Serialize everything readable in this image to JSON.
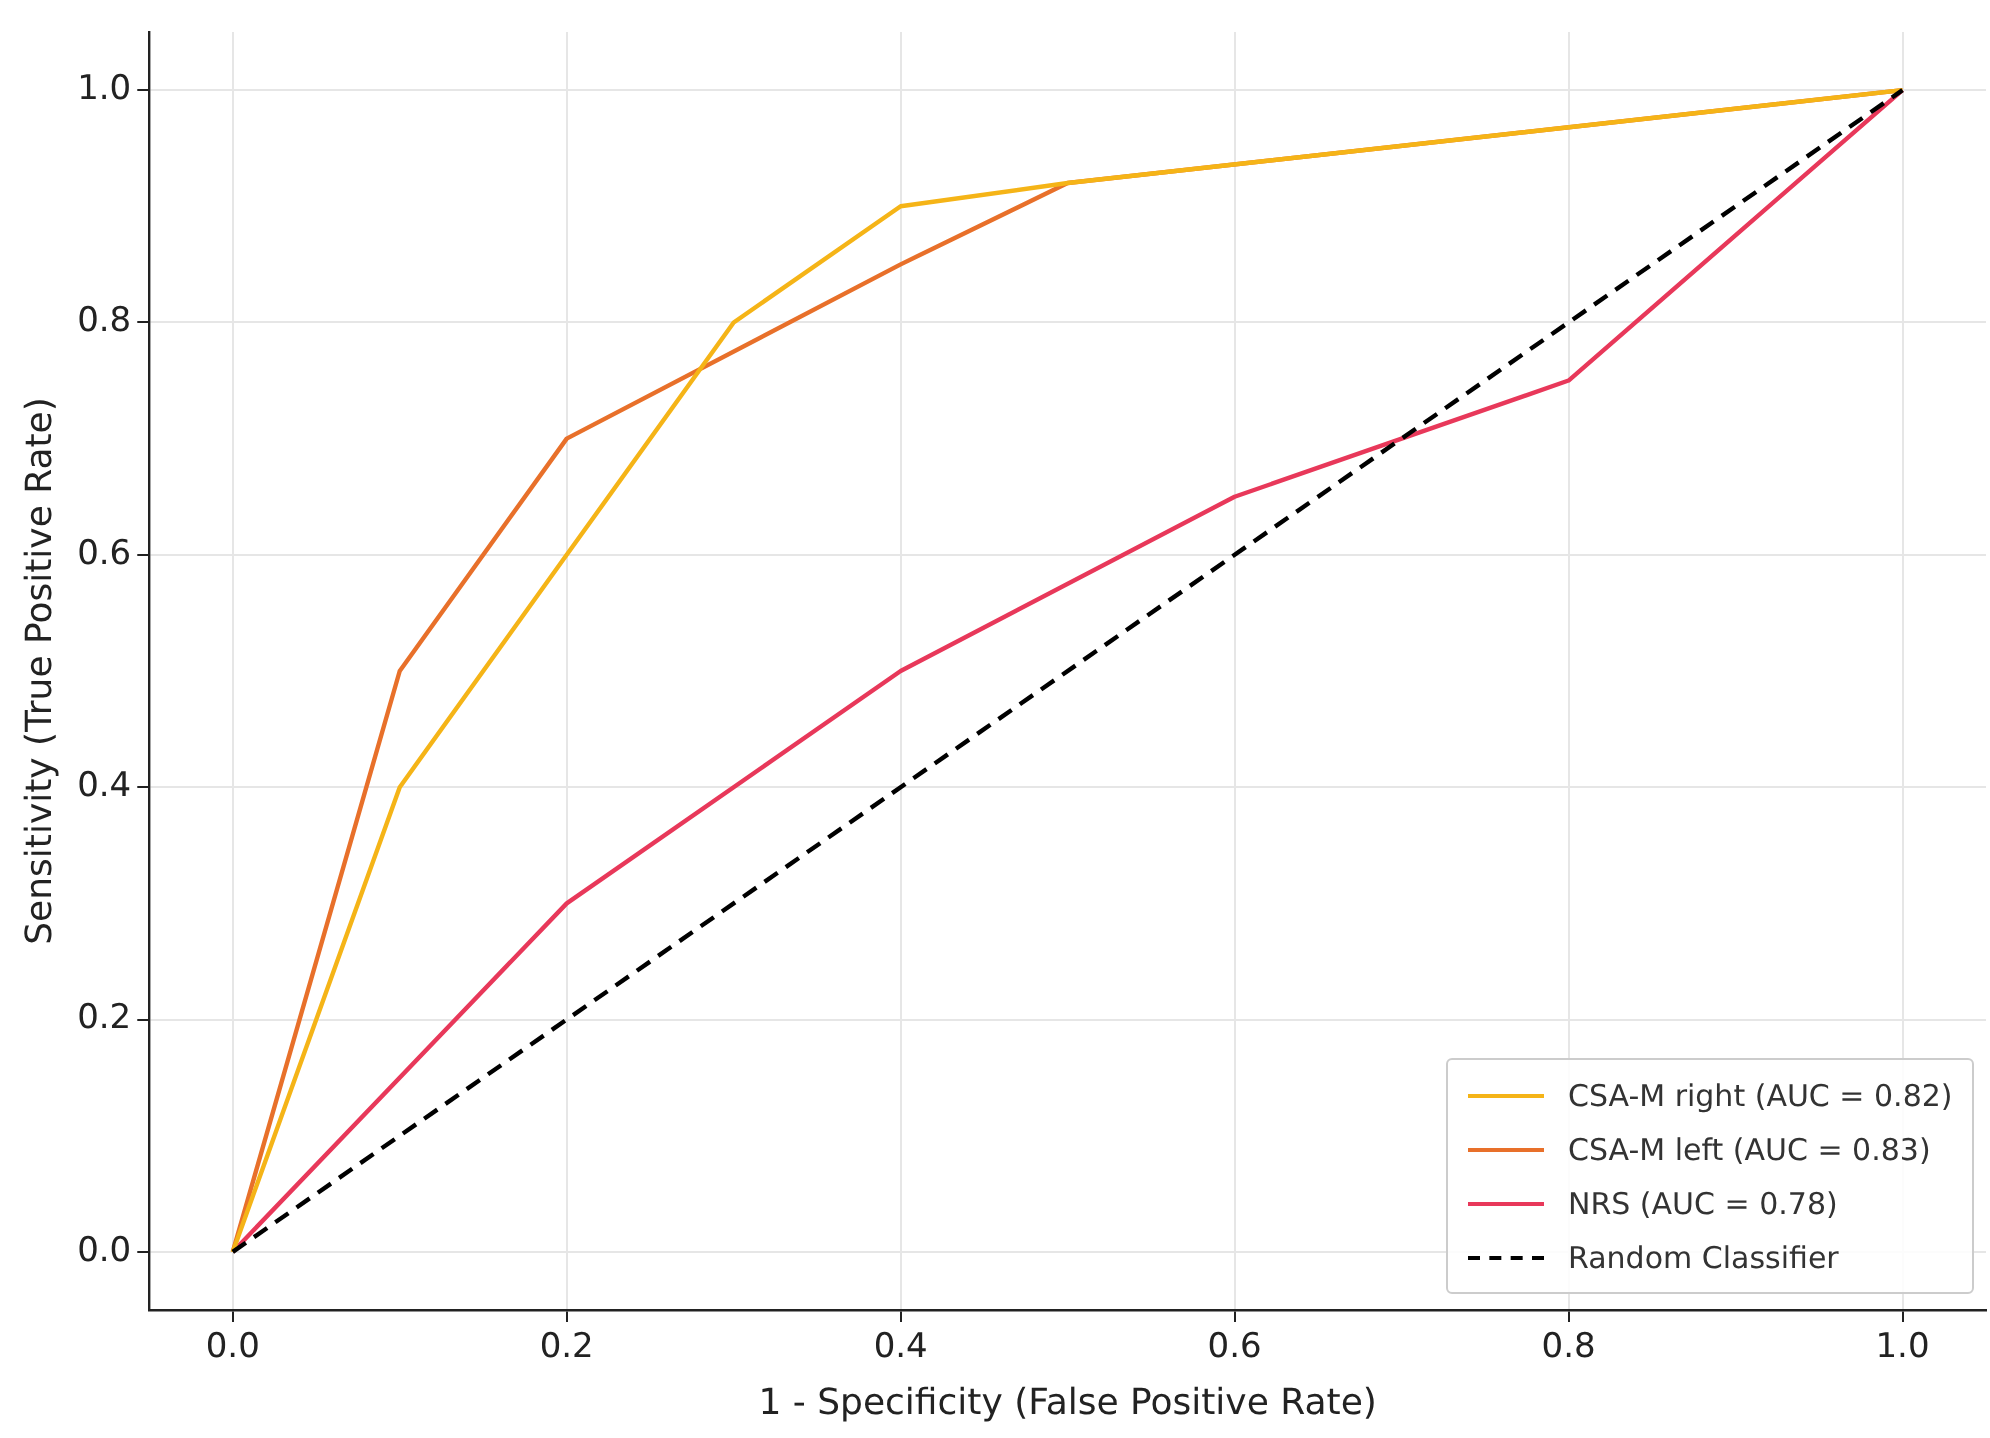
{
  "chart_data": {
    "type": "line",
    "xlabel": "1 - Specificity (False Positive Rate)",
    "ylabel": "Sensitivity (True Positive Rate)",
    "series": [
      {
        "name": "CSA-M right (AUC = 0.82)",
        "color": "#f5b417",
        "x": [
          0,
          0.1,
          0.2,
          0.3,
          0.4,
          0.5,
          1
        ],
        "values": [
          0,
          0.4,
          0.6,
          0.8,
          0.9,
          0.92,
          1
        ]
      },
      {
        "name": "CSA-M left (AUC = 0.83)",
        "color": "#e8702a",
        "x": [
          0,
          0.1,
          0.2,
          0.4,
          0.5,
          1
        ],
        "values": [
          0,
          0.5,
          0.7,
          0.85,
          0.92,
          1
        ]
      },
      {
        "name": "NRS (AUC = 0.78)",
        "color": "#e8385a",
        "x": [
          0,
          0.2,
          0.4,
          0.6,
          0.8,
          1
        ],
        "values": [
          0,
          0.3,
          0.5,
          0.65,
          0.75,
          1
        ]
      },
      {
        "name": "Random Classifier",
        "color": "#000000",
        "line_style": "dashed",
        "x": [
          0,
          1
        ],
        "values": [
          0,
          1
        ]
      }
    ],
    "xlim": [
      -0.05,
      1.05
    ],
    "ylim": [
      -0.05,
      1.05
    ],
    "xticks": [
      {
        "value": 0,
        "label": "0.0"
      },
      {
        "value": 0.2,
        "label": "0.2"
      },
      {
        "value": 0.4,
        "label": "0.4"
      },
      {
        "value": 0.6,
        "label": "0.6"
      },
      {
        "value": 0.8,
        "label": "0.8"
      },
      {
        "value": 1,
        "label": "1.0"
      }
    ],
    "yticks": [
      {
        "value": 0,
        "label": "0.0"
      },
      {
        "value": 0.2,
        "label": "0.2"
      },
      {
        "value": 0.4,
        "label": "0.4"
      },
      {
        "value": 0.6,
        "label": "0.6"
      },
      {
        "value": 0.8,
        "label": "0.8"
      },
      {
        "value": 1,
        "label": "1.0"
      }
    ],
    "grid": true,
    "legend": "bottom right",
    "marker": "none"
  }
}
